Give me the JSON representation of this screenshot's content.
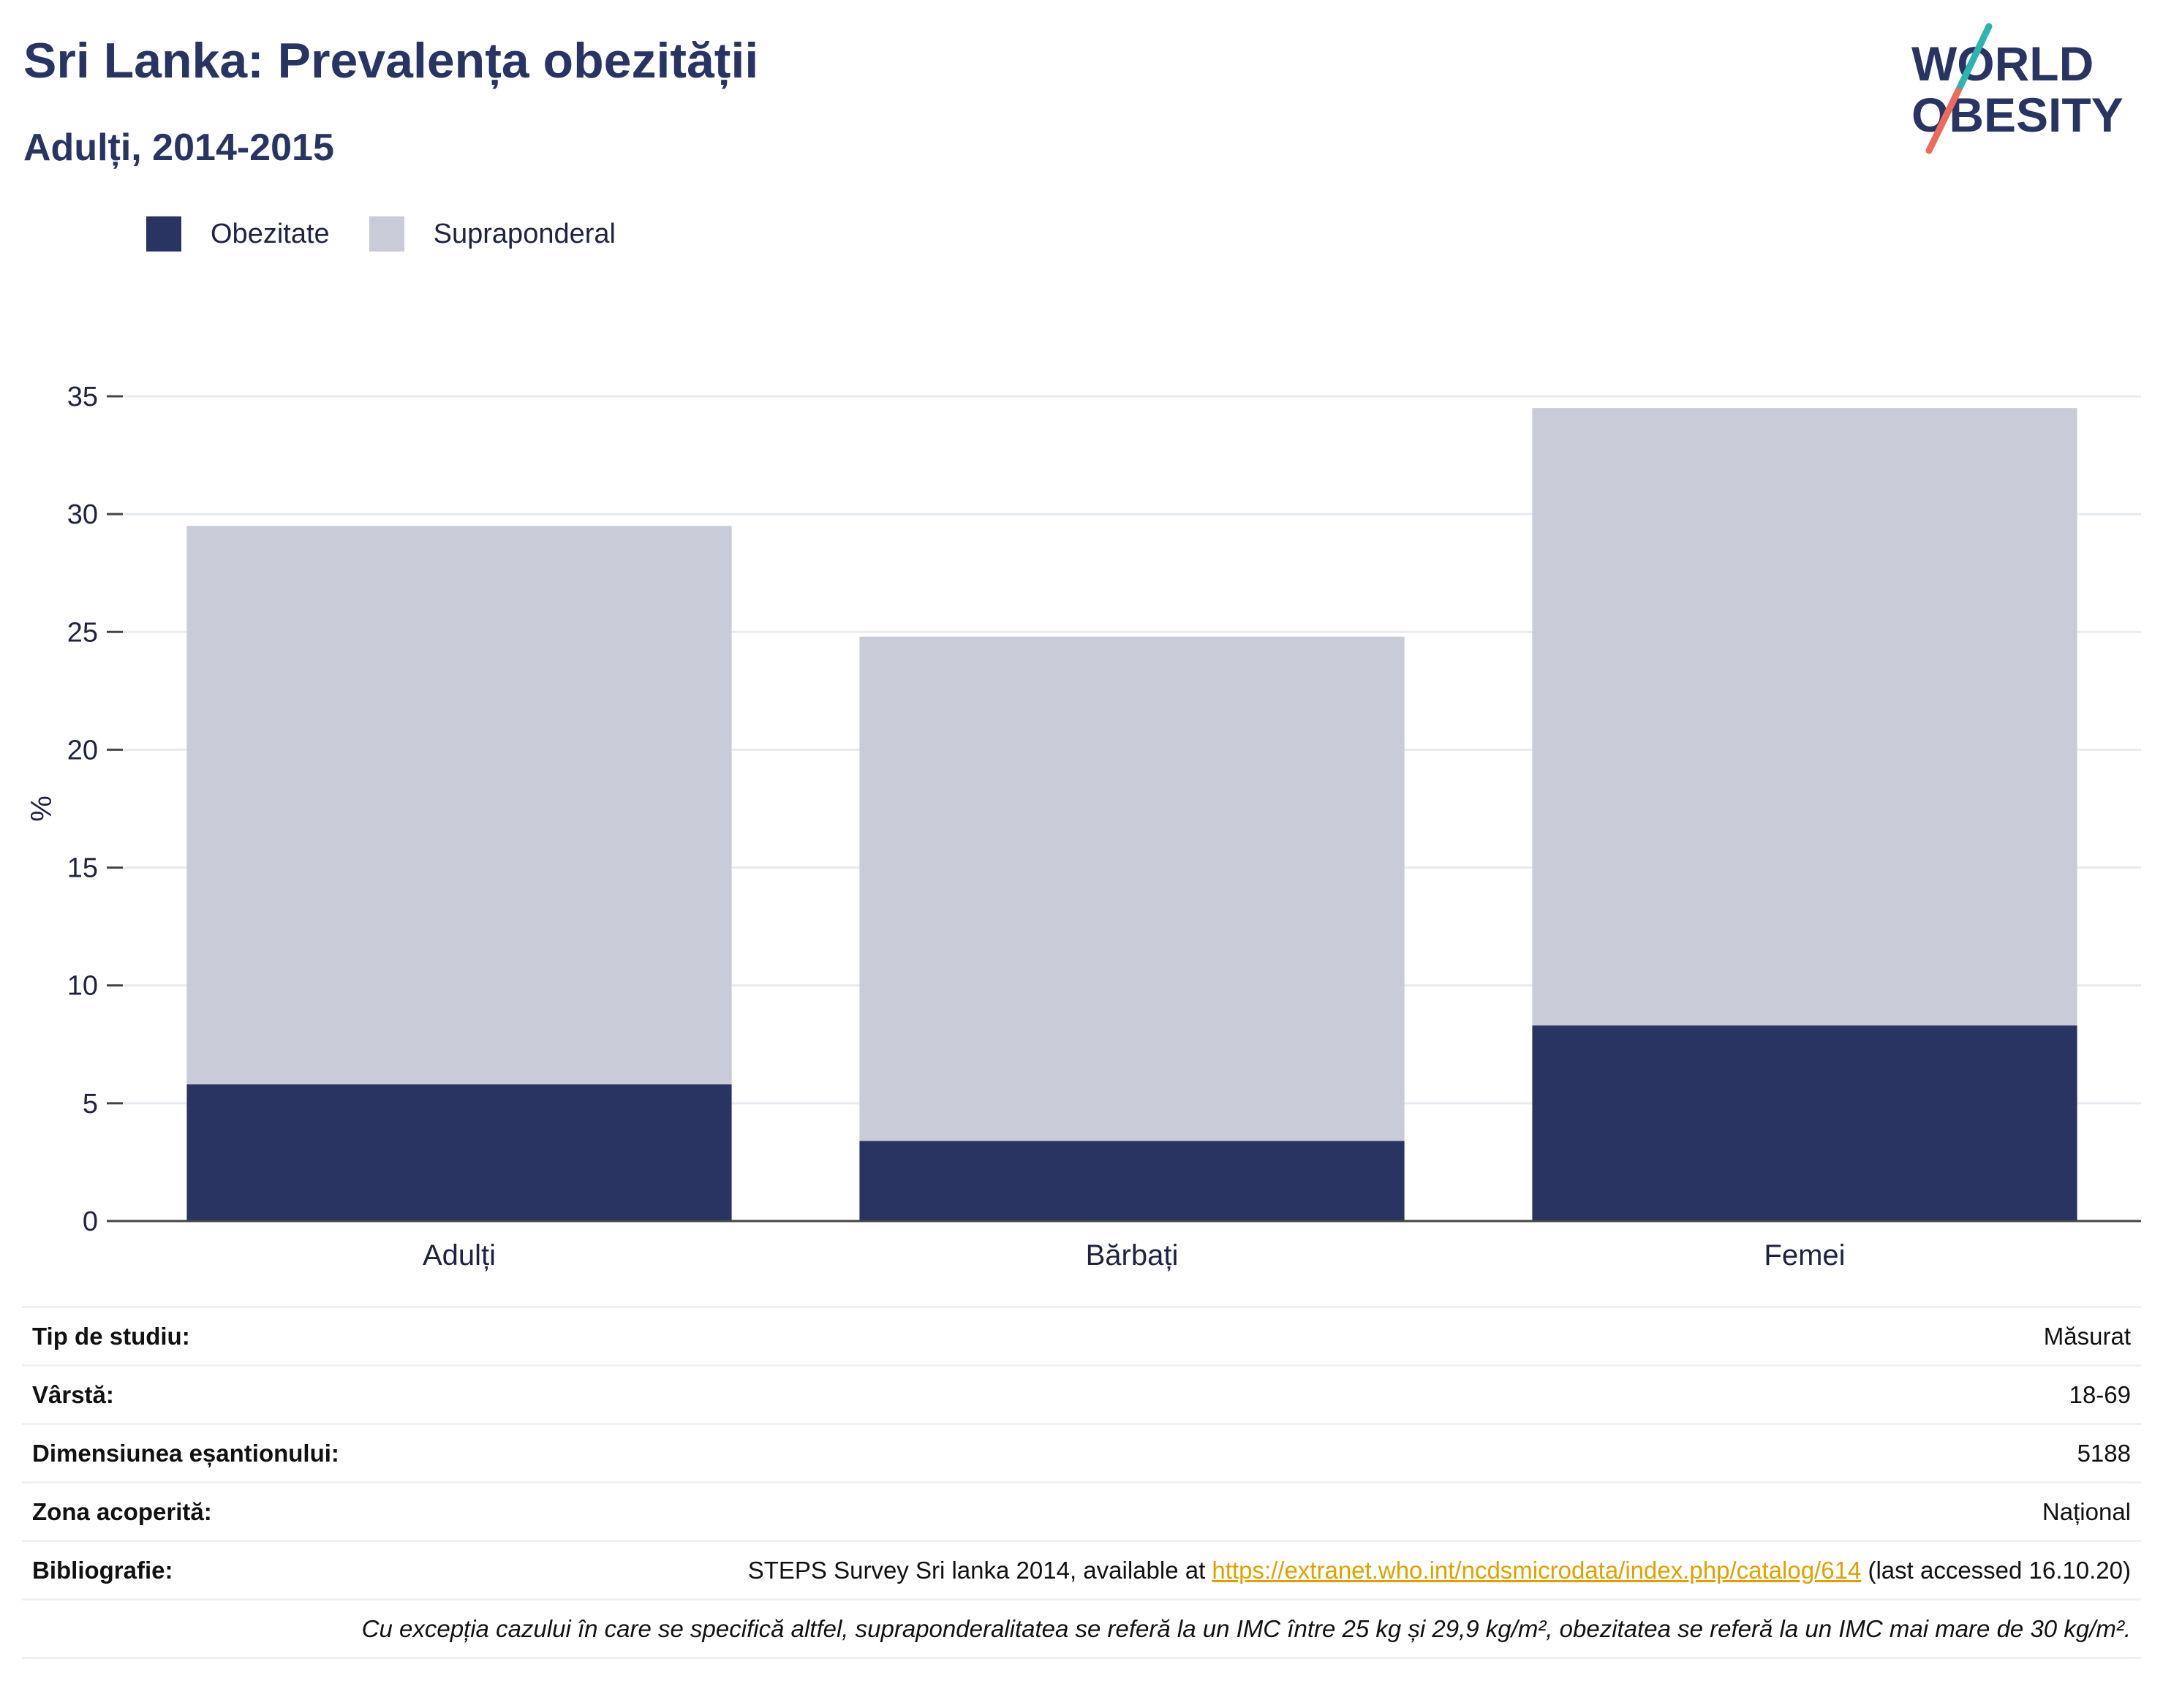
{
  "header": {
    "title": "Sri Lanka: Prevalența obezității",
    "subtitle": "Adulți, 2014-2015"
  },
  "logo": {
    "line1": "WORLD",
    "line2": "OBESITY"
  },
  "legend": {
    "items": [
      {
        "label": "Obezitate",
        "color": "#293462"
      },
      {
        "label": "Supraponderal",
        "color": "#c9ccd8"
      }
    ]
  },
  "chart_data": {
    "type": "bar",
    "stacked": true,
    "categories": [
      "Adulți",
      "Bărbați",
      "Femei"
    ],
    "series": [
      {
        "name": "Obezitate",
        "values": [
          5.8,
          3.4,
          8.3
        ],
        "color": "#293462"
      },
      {
        "name": "Supraponderal",
        "values": [
          23.7,
          21.4,
          26.2
        ],
        "color": "#c9ccd8"
      }
    ],
    "ylabel": "%",
    "ylim": [
      0,
      35
    ],
    "yticks": [
      0,
      5,
      10,
      15,
      20,
      25,
      30,
      35
    ],
    "grid": true,
    "legend_position": "top-left"
  },
  "info": {
    "rows": [
      {
        "key": "Tip de studiu:",
        "value": "Măsurat"
      },
      {
        "key": "Vârstă:",
        "value": "18-69"
      },
      {
        "key": "Dimensiunea eșantionului:",
        "value": "5188"
      },
      {
        "key": "Zona acoperită:",
        "value": "Național"
      }
    ],
    "bibliography": {
      "key": "Bibliografie:",
      "prefix": "STEPS Survey Sri lanka 2014, available at ",
      "link": "https://extranet.who.int/ncdsmicrodata/index.php/catalog/614",
      "suffix": " (last accessed 16.10.20)"
    },
    "note": "Cu excepția cazului în care se specifică altfel, supraponderalitatea se referă la un IMC între 25 kg și 29,9 kg/m², obezitatea se referă la un IMC mai mare de 30 kg/m²."
  }
}
